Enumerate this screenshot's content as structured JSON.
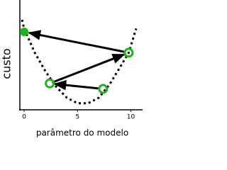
{
  "chart_data": {
    "type": "scatter",
    "xlabel": "parâmetro do modelo",
    "ylabel": "custo",
    "xlim": [
      -0.4,
      11.1
    ],
    "ylim": [
      0,
      10
    ],
    "xticks": [
      0,
      5,
      10
    ],
    "series": [
      {
        "type": "line",
        "color": "#000000",
        "dashed": true,
        "x": [
          -0.2,
          0,
          1,
          2,
          3,
          4,
          5,
          6,
          7,
          8,
          9,
          9.8,
          10.5
        ],
        "values": [
          8.2,
          7.4,
          5.2,
          3.5,
          2.1,
          1.1,
          0.6,
          0.6,
          1.1,
          2.3,
          3.9,
          5.2,
          7.4
        ]
      },
      {
        "type": "scatter",
        "color": "#1db31d",
        "arrows": true,
        "x": [
          7.4,
          2.4,
          9.8,
          0
        ],
        "values": [
          1.9,
          2.4,
          5.2,
          7.1
        ],
        "filled": [
          false,
          false,
          false,
          true
        ]
      }
    ]
  }
}
